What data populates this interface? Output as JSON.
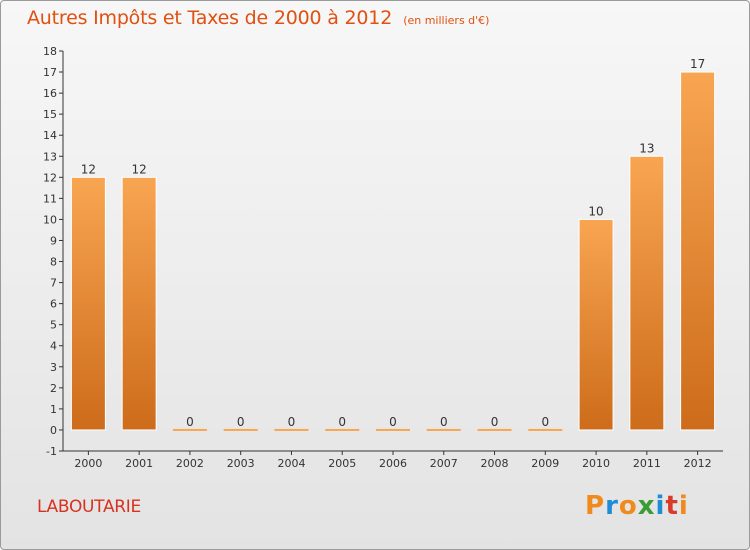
{
  "header": {
    "title": "Autres Impôts et Taxes de 2000 à 2012",
    "unit": "(en milliers d'€)"
  },
  "footer": {
    "commune": "LABOUTARIE",
    "logo_text": "Proxiti"
  },
  "colors": {
    "title": "#e05010",
    "commune": "#d9311f",
    "bar_light": "#f8a551",
    "bar_dark": "#cd6c1b",
    "logo_letters": [
      "#f08a1c",
      "#1f8cd6",
      "#f08a1c",
      "#3a9c35",
      "#1f8cd6",
      "#d83b2a",
      "#f08a1c"
    ]
  },
  "chart_data": {
    "type": "bar",
    "title": "Autres Impôts et Taxes de 2000 à 2012",
    "subtitle": "(en milliers d'€)",
    "categories": [
      "2000",
      "2001",
      "2002",
      "2003",
      "2004",
      "2005",
      "2006",
      "2007",
      "2008",
      "2009",
      "2010",
      "2011",
      "2012"
    ],
    "values": [
      12,
      12,
      0,
      0,
      0,
      0,
      0,
      0,
      0,
      0,
      10,
      13,
      17
    ],
    "data_labels": [
      "12",
      "12",
      "0",
      "0",
      "0",
      "0",
      "0",
      "0",
      "0",
      "0",
      "10",
      "13",
      "17"
    ],
    "ylim": [
      -1,
      18
    ],
    "yticks": [
      -1,
      0,
      1,
      2,
      3,
      4,
      5,
      6,
      7,
      8,
      9,
      10,
      11,
      12,
      13,
      14,
      15,
      16,
      17,
      18
    ],
    "grid": false,
    "legend": "none"
  }
}
